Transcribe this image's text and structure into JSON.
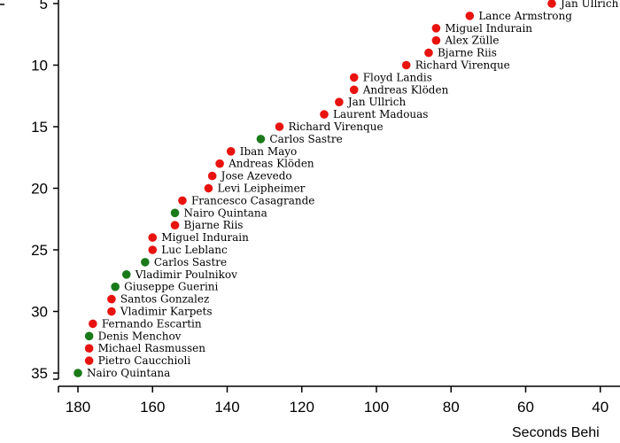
{
  "chart_data": {
    "type": "scatter",
    "xlabel": "Seconds Behi",
    "x_range": [
      185,
      35
    ],
    "y_range": [
      3.5,
      36
    ],
    "x_ticks": [
      180,
      160,
      140,
      120,
      100,
      80,
      60,
      40
    ],
    "y_ticks": [
      5,
      10,
      15,
      20,
      25,
      30,
      35
    ],
    "colors": {
      "red": "#e8130f",
      "green": "#1a7a1a"
    },
    "points": [
      {
        "rank": 5,
        "seconds": 53,
        "name": "Jan Ullrich",
        "color": "red"
      },
      {
        "rank": 6,
        "seconds": 75,
        "name": "Lance Armstrong",
        "color": "red"
      },
      {
        "rank": 7,
        "seconds": 84,
        "name": "Miguel Indurain",
        "color": "red"
      },
      {
        "rank": 8,
        "seconds": 84,
        "name": "Alex Zülle",
        "color": "red"
      },
      {
        "rank": 9,
        "seconds": 86,
        "name": "Bjarne Riis",
        "color": "red"
      },
      {
        "rank": 10,
        "seconds": 92,
        "name": "Richard Virenque",
        "color": "red"
      },
      {
        "rank": 11,
        "seconds": 106,
        "name": "Floyd Landis",
        "color": "red"
      },
      {
        "rank": 12,
        "seconds": 106,
        "name": "Andreas Klöden",
        "color": "red"
      },
      {
        "rank": 13,
        "seconds": 110,
        "name": "Jan Ullrich",
        "color": "red"
      },
      {
        "rank": 14,
        "seconds": 114,
        "name": "Laurent Madouas",
        "color": "red"
      },
      {
        "rank": 15,
        "seconds": 126,
        "name": "Richard Virenque",
        "color": "red"
      },
      {
        "rank": 16,
        "seconds": 131,
        "name": "Carlos Sastre",
        "color": "green"
      },
      {
        "rank": 17,
        "seconds": 139,
        "name": "Iban Mayo",
        "color": "red"
      },
      {
        "rank": 18,
        "seconds": 142,
        "name": "Andreas Klöden",
        "color": "red"
      },
      {
        "rank": 19,
        "seconds": 144,
        "name": "Jose Azevedo",
        "color": "red"
      },
      {
        "rank": 20,
        "seconds": 145,
        "name": "Levi Leipheimer",
        "color": "red"
      },
      {
        "rank": 21,
        "seconds": 152,
        "name": "Francesco Casagrande",
        "color": "red"
      },
      {
        "rank": 22,
        "seconds": 154,
        "name": "Nairo Quintana",
        "color": "green"
      },
      {
        "rank": 23,
        "seconds": 154,
        "name": "Bjarne Riis",
        "color": "red"
      },
      {
        "rank": 24,
        "seconds": 160,
        "name": "Miguel Indurain",
        "color": "red"
      },
      {
        "rank": 25,
        "seconds": 160,
        "name": "Luc Leblanc",
        "color": "red"
      },
      {
        "rank": 26,
        "seconds": 162,
        "name": "Carlos Sastre",
        "color": "green"
      },
      {
        "rank": 27,
        "seconds": 167,
        "name": "Vladimir Poulnikov",
        "color": "green"
      },
      {
        "rank": 28,
        "seconds": 170,
        "name": "Giuseppe Guerini",
        "color": "green"
      },
      {
        "rank": 29,
        "seconds": 171,
        "name": "Santos Gonzalez",
        "color": "red"
      },
      {
        "rank": 30,
        "seconds": 171,
        "name": "Vladimir Karpets",
        "color": "red"
      },
      {
        "rank": 31,
        "seconds": 176,
        "name": "Fernando Escartin",
        "color": "red"
      },
      {
        "rank": 32,
        "seconds": 177,
        "name": "Denis Menchov",
        "color": "green"
      },
      {
        "rank": 33,
        "seconds": 177,
        "name": "Michael Rasmussen",
        "color": "red"
      },
      {
        "rank": 34,
        "seconds": 177,
        "name": "Pietro Caucchioli",
        "color": "red"
      },
      {
        "rank": 35,
        "seconds": 180,
        "name": "Nairo Quintana",
        "color": "green"
      }
    ]
  }
}
